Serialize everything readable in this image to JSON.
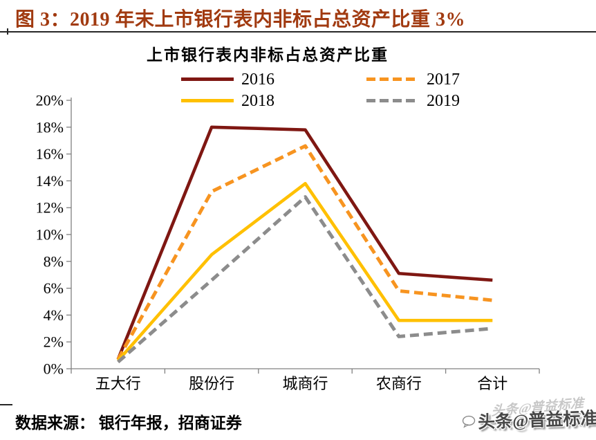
{
  "figure_header": {
    "title": "图 3：2019 年末上市银行表内非标占总资产比重 3%",
    "color": "#A13A10"
  },
  "chart_data": {
    "type": "line",
    "title": "上市银行表内非标占总资产比重",
    "categories": [
      "五大行",
      "股份行",
      "城商行",
      "农商行",
      "合计"
    ],
    "series": [
      {
        "name": "2016",
        "color": "#7F1712",
        "dash": "solid",
        "values": [
          0.7,
          18.0,
          17.8,
          7.1,
          6.6
        ]
      },
      {
        "name": "2017",
        "color": "#F79420",
        "dash": "dashed",
        "values": [
          0.7,
          13.2,
          16.6,
          5.8,
          5.1
        ]
      },
      {
        "name": "2018",
        "color": "#FFC000",
        "dash": "solid",
        "values": [
          0.6,
          8.5,
          13.8,
          3.6,
          3.6
        ]
      },
      {
        "name": "2019",
        "color": "#8C8C8C",
        "dash": "dashed",
        "values": [
          0.5,
          6.6,
          12.8,
          2.4,
          3.0
        ]
      }
    ],
    "ylim": [
      0,
      20
    ],
    "ytick_step": 2,
    "ytick_labels": [
      "0%",
      "2%",
      "4%",
      "6%",
      "8%",
      "10%",
      "12%",
      "14%",
      "16%",
      "18%",
      "20%"
    ],
    "axis_color": "#808080",
    "grid": false,
    "legend_position": "top"
  },
  "footer": {
    "source": "数据来源： 银行年报，招商证券"
  },
  "watermark": {
    "text": "头条@普益标准"
  }
}
